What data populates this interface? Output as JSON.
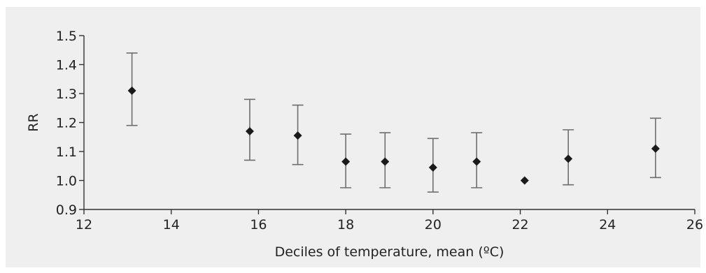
{
  "chart_data": {
    "type": "scatter",
    "title": "",
    "xlabel": "Deciles of temperature, mean (ºC)",
    "ylabel": "RR",
    "xlim": [
      12,
      26
    ],
    "ylim": [
      0.9,
      1.5
    ],
    "x_ticks": [
      "12",
      "14",
      "16",
      "18",
      "20",
      "22",
      "24",
      "26"
    ],
    "y_ticks": [
      "0.9",
      "1.0",
      "1.1",
      "1.2",
      "1.3",
      "1.4",
      "1.5"
    ],
    "grid": false,
    "legend": "none",
    "colors": {
      "marker": "#1a1a1a",
      "error_bar": "#6e6e6e",
      "axis": "#333333",
      "background": "#efefef"
    },
    "series": [
      {
        "points": [
          {
            "x": 13.1,
            "y": 1.31,
            "lower": 1.19,
            "upper": 1.44
          },
          {
            "x": 15.8,
            "y": 1.17,
            "lower": 1.07,
            "upper": 1.28
          },
          {
            "x": 16.9,
            "y": 1.155,
            "lower": 1.055,
            "upper": 1.26
          },
          {
            "x": 18.0,
            "y": 1.065,
            "lower": 0.975,
            "upper": 1.16
          },
          {
            "x": 18.9,
            "y": 1.065,
            "lower": 0.975,
            "upper": 1.165
          },
          {
            "x": 20.0,
            "y": 1.045,
            "lower": 0.96,
            "upper": 1.145
          },
          {
            "x": 21.0,
            "y": 1.065,
            "lower": 0.975,
            "upper": 1.165
          },
          {
            "x": 22.1,
            "y": 1.0
          },
          {
            "x": 23.1,
            "y": 1.075,
            "lower": 0.985,
            "upper": 1.175
          },
          {
            "x": 25.1,
            "y": 1.11,
            "lower": 1.01,
            "upper": 1.215
          }
        ]
      }
    ]
  }
}
